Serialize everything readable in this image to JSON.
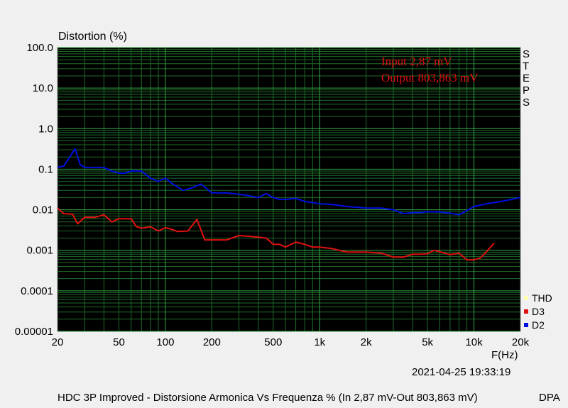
{
  "chart_data": {
    "type": "line",
    "title": "Distortion (%)",
    "xlabel": "F(Hz)",
    "x_scale": "log",
    "y_scale": "log",
    "xlim": [
      20,
      20000
    ],
    "ylim": [
      1e-05,
      100
    ],
    "x_ticks": [
      20,
      50,
      100,
      200,
      500,
      1000,
      2000,
      5000,
      10000,
      20000
    ],
    "x_tick_labels": [
      "20",
      "50",
      "100",
      "200",
      "500",
      "1k",
      "2k",
      "5k",
      "10k",
      "20k"
    ],
    "y_ticks": [
      1e-05,
      0.0001,
      0.001,
      0.01,
      0.1,
      1,
      10,
      100
    ],
    "y_tick_labels": [
      "0.00001",
      "0.0001",
      "0.001",
      "0.01",
      "0.1",
      "1.0",
      "10.0",
      "100.0"
    ],
    "grid": true,
    "background": "#000000",
    "grid_color": "#1e6b2a",
    "legend_position": "bottom-right",
    "annotations": [
      "Input 2,87 mV",
      "Output 803,863 mV"
    ],
    "side_label": "STEPS",
    "timestamp": "2021-04-25 19:33:19",
    "series": [
      {
        "name": "THD",
        "color": "#ffffb0",
        "x": [],
        "y": []
      },
      {
        "name": "D3",
        "color": "#e01010",
        "x": [
          20,
          22,
          25,
          27,
          30,
          35,
          40,
          45,
          50,
          60,
          65,
          70,
          80,
          90,
          100,
          110,
          120,
          140,
          160,
          180,
          200,
          250,
          300,
          350,
          400,
          450,
          500,
          550,
          600,
          700,
          800,
          900,
          1000,
          1200,
          1500,
          2000,
          2500,
          3000,
          3500,
          4000,
          4500,
          5000,
          5500,
          6000,
          7000,
          8000,
          9000,
          10000,
          11000,
          12000,
          13500
        ],
        "y": [
          0.011,
          0.008,
          0.0078,
          0.0045,
          0.0065,
          0.0065,
          0.0075,
          0.005,
          0.006,
          0.006,
          0.0038,
          0.0035,
          0.0038,
          0.003,
          0.0036,
          0.0033,
          0.0029,
          0.003,
          0.0058,
          0.0018,
          0.0018,
          0.0018,
          0.0023,
          0.0022,
          0.0021,
          0.002,
          0.0014,
          0.0014,
          0.0012,
          0.0016,
          0.0014,
          0.0012,
          0.0012,
          0.0011,
          0.0009,
          0.0009,
          0.00085,
          0.00068,
          0.00068,
          0.0008,
          0.0008,
          0.00082,
          0.001,
          0.00092,
          0.00078,
          0.00085,
          0.00058,
          0.00058,
          0.00065,
          0.0009,
          0.0015
        ]
      },
      {
        "name": "D2",
        "color": "#0010e0",
        "x": [
          20,
          22,
          24,
          26,
          28,
          30,
          35,
          40,
          45,
          50,
          55,
          60,
          70,
          80,
          90,
          100,
          110,
          130,
          150,
          170,
          200,
          250,
          300,
          350,
          400,
          450,
          500,
          550,
          600,
          700,
          800,
          900,
          1000,
          1200,
          1500,
          2000,
          2500,
          3000,
          3500,
          4000,
          4500,
          5000,
          6000,
          7000,
          8000,
          9000,
          10000,
          11000,
          12000,
          15000,
          20000
        ],
        "y": [
          0.11,
          0.12,
          0.2,
          0.32,
          0.13,
          0.11,
          0.11,
          0.11,
          0.09,
          0.08,
          0.08,
          0.09,
          0.09,
          0.06,
          0.05,
          0.06,
          0.045,
          0.03,
          0.035,
          0.043,
          0.026,
          0.026,
          0.024,
          0.022,
          0.02,
          0.025,
          0.02,
          0.018,
          0.018,
          0.019,
          0.016,
          0.015,
          0.014,
          0.0135,
          0.012,
          0.011,
          0.011,
          0.01,
          0.008,
          0.0085,
          0.0085,
          0.009,
          0.0088,
          0.0082,
          0.0075,
          0.0095,
          0.012,
          0.013,
          0.014,
          0.016,
          0.02
        ]
      }
    ]
  },
  "footer": {
    "caption": "HDC 3P Improved - Distorsione Armonica Vs Frequenza % (In 2,87 mV-Out 803,863 mV)",
    "right": "DPA"
  }
}
